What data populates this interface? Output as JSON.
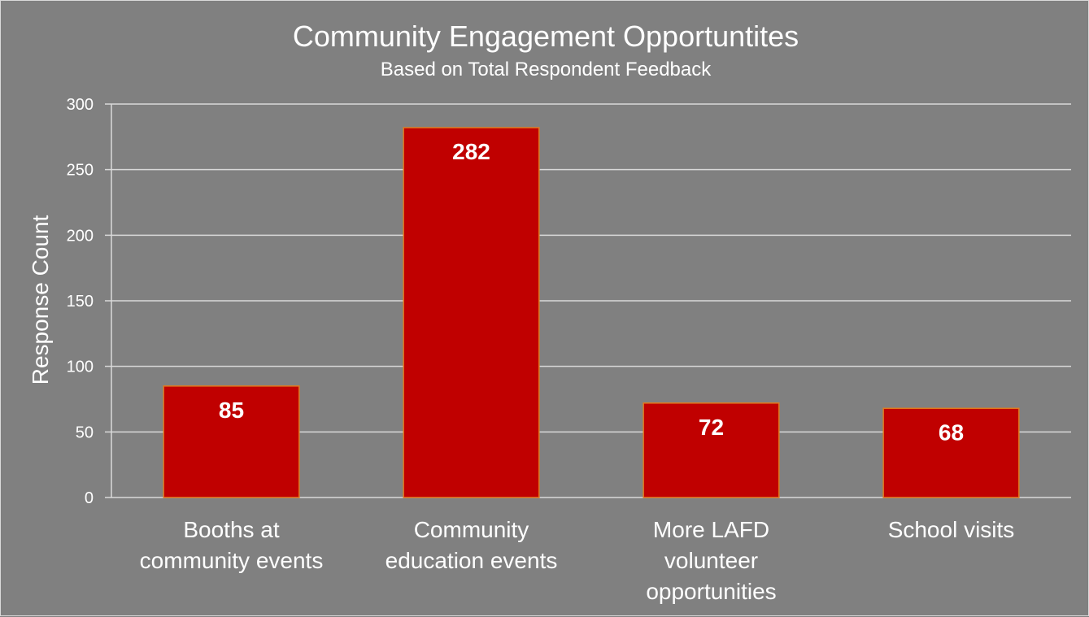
{
  "chart_data": {
    "type": "bar",
    "title": "Community Engagement Opportuntites",
    "subtitle": "Based on Total Respondent Feedback",
    "xlabel": "",
    "ylabel": "Response Count",
    "categories": [
      [
        "Booths at",
        "community events"
      ],
      [
        "Community",
        "education events"
      ],
      [
        "More LAFD",
        "volunteer",
        "opportunities"
      ],
      [
        "School visits"
      ]
    ],
    "values": [
      85,
      282,
      72,
      68
    ],
    "ylim": [
      0,
      300
    ],
    "yticks": [
      0,
      50,
      100,
      150,
      200,
      250,
      300
    ],
    "grid": true,
    "data_labels": true,
    "colors": {
      "bar_fill": "#c00000",
      "bar_border": "#e07a1f",
      "background": "#808080",
      "gridline": "#d9d9d9",
      "text": "#ffffff"
    }
  }
}
